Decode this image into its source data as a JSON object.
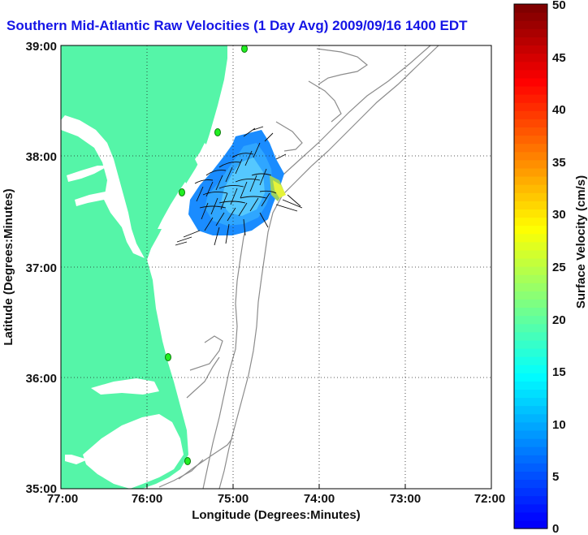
{
  "title": "Southern Mid-Atlantic Raw Velocities (1 Day Avg) 2009/09/16 1400 EDT",
  "xlabel": "Longitude (Degrees:Minutes)",
  "ylabel": "Latitude (Degrees:Minutes)",
  "colorbar_label": "Surface Velocity (cm/s)",
  "x_ticks": [
    "77:00",
    "76:00",
    "75:00",
    "74:00",
    "73:00",
    "72:00"
  ],
  "y_ticks": [
    "39:00",
    "38:00",
    "37:00",
    "36:00",
    "35:00"
  ],
  "colorbar_ticks": [
    "50",
    "45",
    "40",
    "35",
    "30",
    "25",
    "20",
    "15",
    "10",
    "5",
    "0"
  ],
  "colors": {
    "land": "#55f5a8",
    "ocean": "#ffffff",
    "bathymetry": "#8c8c8c",
    "station": "#22ee22",
    "title": "#1515e6"
  },
  "chart_data": {
    "type": "map",
    "xlim": [
      -77,
      -72
    ],
    "ylim": [
      35,
      39
    ],
    "colorbar_range": [
      0,
      50
    ],
    "colormap": "jet",
    "grid": true,
    "station_markers": [
      {
        "lon": -74.87,
        "lat": 38.98
      },
      {
        "lon": -75.18,
        "lat": 38.21
      },
      {
        "lon": -75.55,
        "lat": 37.68
      },
      {
        "lon": -75.7,
        "lat": 36.18
      },
      {
        "lon": -75.48,
        "lat": 35.25
      }
    ]
  }
}
